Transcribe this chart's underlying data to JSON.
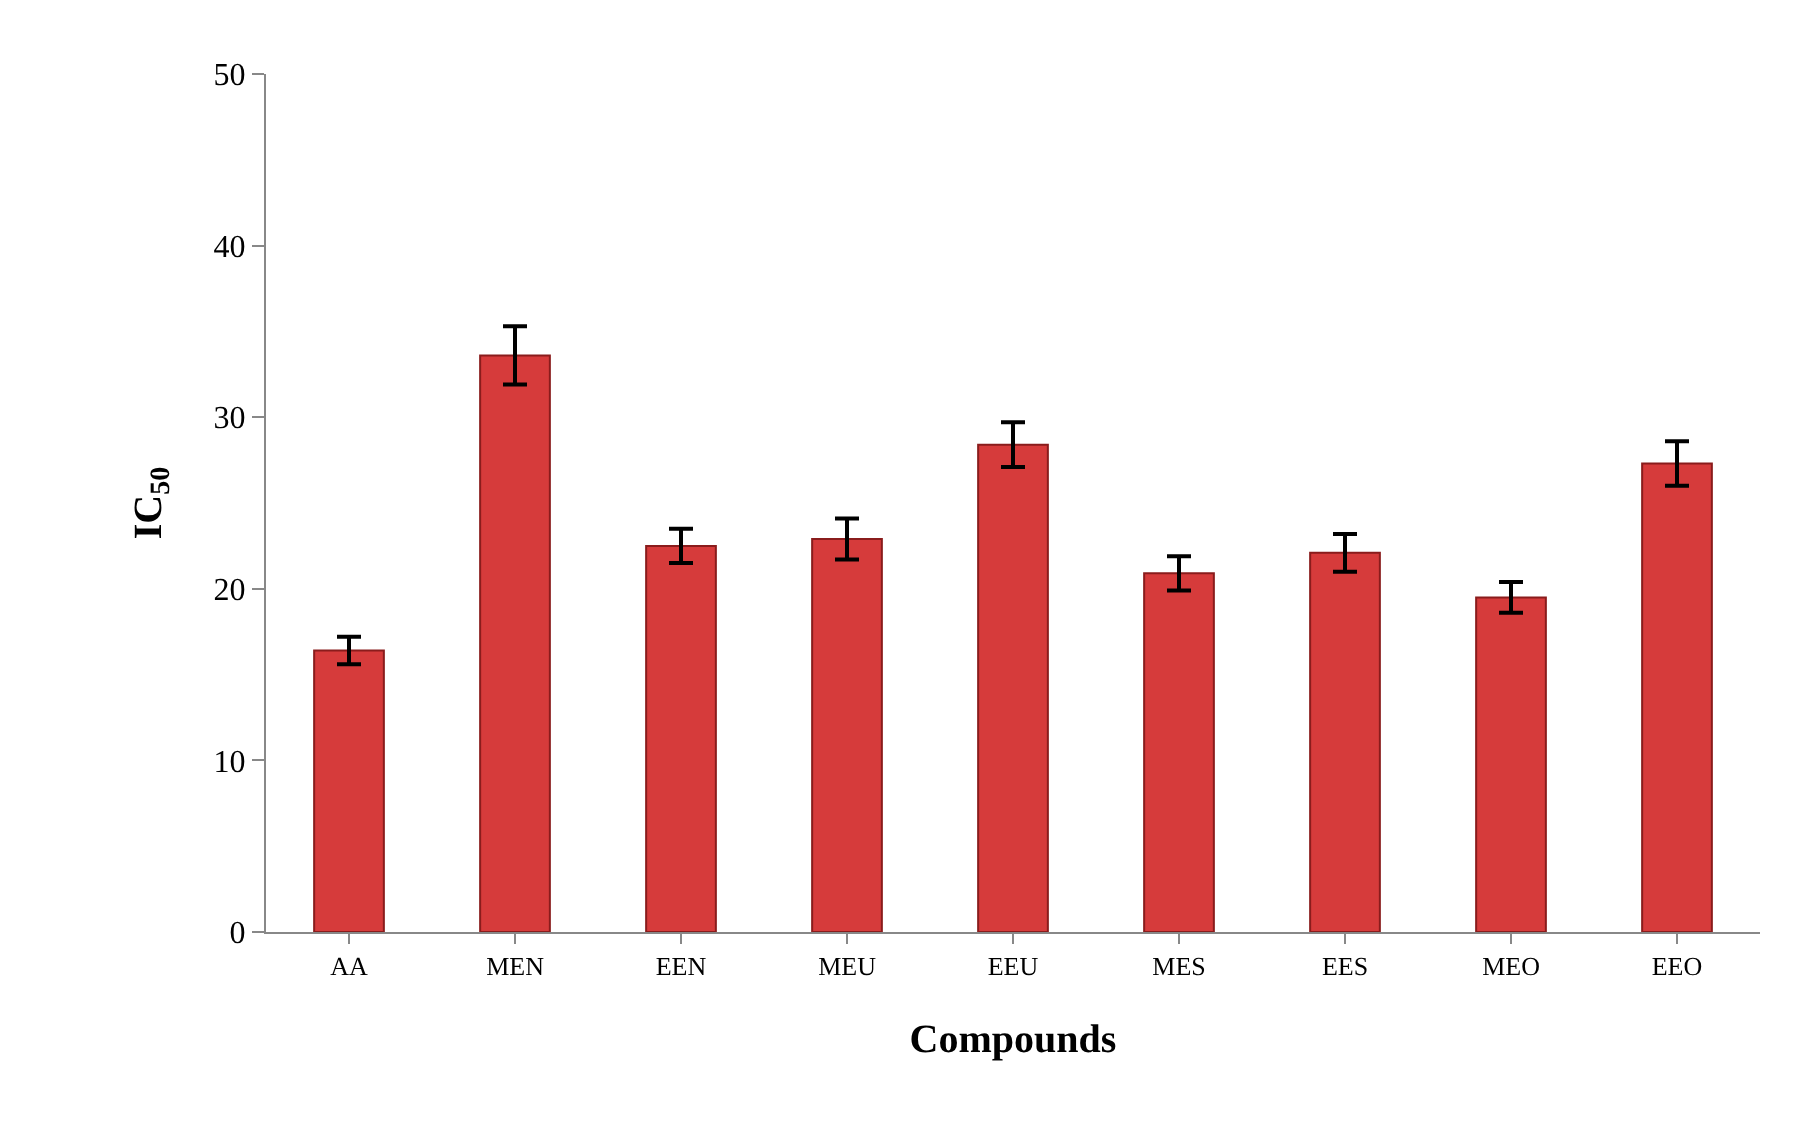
{
  "chart_data": {
    "type": "bar",
    "xlabel": "Compounds",
    "ylabel": "IC$_{50}$",
    "categories": [
      "AA",
      "MEN",
      "EEN",
      "MEU",
      "EEU",
      "MES",
      "EES",
      "MEO",
      "EEO"
    ],
    "values": [
      16.4,
      33.6,
      22.5,
      22.9,
      28.4,
      20.9,
      22.1,
      19.5,
      27.3
    ],
    "errors": [
      0.8,
      1.7,
      1.0,
      1.2,
      1.3,
      1.0,
      1.1,
      0.9,
      1.3
    ],
    "color": "#d63b3b",
    "ylim": [
      0,
      50
    ],
    "yticks": [
      0,
      10,
      20,
      30,
      40,
      50
    ],
    "grid": false
  }
}
